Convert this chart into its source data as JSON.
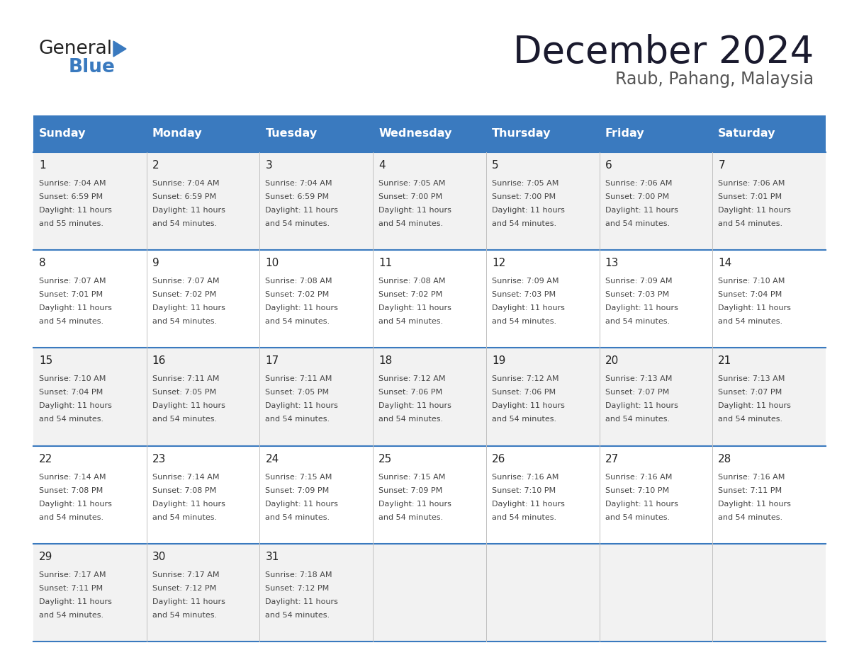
{
  "title": "December 2024",
  "subtitle": "Raub, Pahang, Malaysia",
  "header_bg": "#3a7abf",
  "header_text": "#ffffff",
  "row_bg_odd": "#f2f2f2",
  "row_bg_even": "#ffffff",
  "cell_border": "#3a7abf",
  "day_headers": [
    "Sunday",
    "Monday",
    "Tuesday",
    "Wednesday",
    "Thursday",
    "Friday",
    "Saturday"
  ],
  "days": [
    {
      "date": 1,
      "col": 0,
      "row": 0,
      "sunrise": "7:04 AM",
      "sunset": "6:59 PM",
      "daylight": "11 hours and 55 minutes."
    },
    {
      "date": 2,
      "col": 1,
      "row": 0,
      "sunrise": "7:04 AM",
      "sunset": "6:59 PM",
      "daylight": "11 hours and 54 minutes."
    },
    {
      "date": 3,
      "col": 2,
      "row": 0,
      "sunrise": "7:04 AM",
      "sunset": "6:59 PM",
      "daylight": "11 hours and 54 minutes."
    },
    {
      "date": 4,
      "col": 3,
      "row": 0,
      "sunrise": "7:05 AM",
      "sunset": "7:00 PM",
      "daylight": "11 hours and 54 minutes."
    },
    {
      "date": 5,
      "col": 4,
      "row": 0,
      "sunrise": "7:05 AM",
      "sunset": "7:00 PM",
      "daylight": "11 hours and 54 minutes."
    },
    {
      "date": 6,
      "col": 5,
      "row": 0,
      "sunrise": "7:06 AM",
      "sunset": "7:00 PM",
      "daylight": "11 hours and 54 minutes."
    },
    {
      "date": 7,
      "col": 6,
      "row": 0,
      "sunrise": "7:06 AM",
      "sunset": "7:01 PM",
      "daylight": "11 hours and 54 minutes."
    },
    {
      "date": 8,
      "col": 0,
      "row": 1,
      "sunrise": "7:07 AM",
      "sunset": "7:01 PM",
      "daylight": "11 hours and 54 minutes."
    },
    {
      "date": 9,
      "col": 1,
      "row": 1,
      "sunrise": "7:07 AM",
      "sunset": "7:02 PM",
      "daylight": "11 hours and 54 minutes."
    },
    {
      "date": 10,
      "col": 2,
      "row": 1,
      "sunrise": "7:08 AM",
      "sunset": "7:02 PM",
      "daylight": "11 hours and 54 minutes."
    },
    {
      "date": 11,
      "col": 3,
      "row": 1,
      "sunrise": "7:08 AM",
      "sunset": "7:02 PM",
      "daylight": "11 hours and 54 minutes."
    },
    {
      "date": 12,
      "col": 4,
      "row": 1,
      "sunrise": "7:09 AM",
      "sunset": "7:03 PM",
      "daylight": "11 hours and 54 minutes."
    },
    {
      "date": 13,
      "col": 5,
      "row": 1,
      "sunrise": "7:09 AM",
      "sunset": "7:03 PM",
      "daylight": "11 hours and 54 minutes."
    },
    {
      "date": 14,
      "col": 6,
      "row": 1,
      "sunrise": "7:10 AM",
      "sunset": "7:04 PM",
      "daylight": "11 hours and 54 minutes."
    },
    {
      "date": 15,
      "col": 0,
      "row": 2,
      "sunrise": "7:10 AM",
      "sunset": "7:04 PM",
      "daylight": "11 hours and 54 minutes."
    },
    {
      "date": 16,
      "col": 1,
      "row": 2,
      "sunrise": "7:11 AM",
      "sunset": "7:05 PM",
      "daylight": "11 hours and 54 minutes."
    },
    {
      "date": 17,
      "col": 2,
      "row": 2,
      "sunrise": "7:11 AM",
      "sunset": "7:05 PM",
      "daylight": "11 hours and 54 minutes."
    },
    {
      "date": 18,
      "col": 3,
      "row": 2,
      "sunrise": "7:12 AM",
      "sunset": "7:06 PM",
      "daylight": "11 hours and 54 minutes."
    },
    {
      "date": 19,
      "col": 4,
      "row": 2,
      "sunrise": "7:12 AM",
      "sunset": "7:06 PM",
      "daylight": "11 hours and 54 minutes."
    },
    {
      "date": 20,
      "col": 5,
      "row": 2,
      "sunrise": "7:13 AM",
      "sunset": "7:07 PM",
      "daylight": "11 hours and 54 minutes."
    },
    {
      "date": 21,
      "col": 6,
      "row": 2,
      "sunrise": "7:13 AM",
      "sunset": "7:07 PM",
      "daylight": "11 hours and 54 minutes."
    },
    {
      "date": 22,
      "col": 0,
      "row": 3,
      "sunrise": "7:14 AM",
      "sunset": "7:08 PM",
      "daylight": "11 hours and 54 minutes."
    },
    {
      "date": 23,
      "col": 1,
      "row": 3,
      "sunrise": "7:14 AM",
      "sunset": "7:08 PM",
      "daylight": "11 hours and 54 minutes."
    },
    {
      "date": 24,
      "col": 2,
      "row": 3,
      "sunrise": "7:15 AM",
      "sunset": "7:09 PM",
      "daylight": "11 hours and 54 minutes."
    },
    {
      "date": 25,
      "col": 3,
      "row": 3,
      "sunrise": "7:15 AM",
      "sunset": "7:09 PM",
      "daylight": "11 hours and 54 minutes."
    },
    {
      "date": 26,
      "col": 4,
      "row": 3,
      "sunrise": "7:16 AM",
      "sunset": "7:10 PM",
      "daylight": "11 hours and 54 minutes."
    },
    {
      "date": 27,
      "col": 5,
      "row": 3,
      "sunrise": "7:16 AM",
      "sunset": "7:10 PM",
      "daylight": "11 hours and 54 minutes."
    },
    {
      "date": 28,
      "col": 6,
      "row": 3,
      "sunrise": "7:16 AM",
      "sunset": "7:11 PM",
      "daylight": "11 hours and 54 minutes."
    },
    {
      "date": 29,
      "col": 0,
      "row": 4,
      "sunrise": "7:17 AM",
      "sunset": "7:11 PM",
      "daylight": "11 hours and 54 minutes."
    },
    {
      "date": 30,
      "col": 1,
      "row": 4,
      "sunrise": "7:17 AM",
      "sunset": "7:12 PM",
      "daylight": "11 hours and 54 minutes."
    },
    {
      "date": 31,
      "col": 2,
      "row": 4,
      "sunrise": "7:18 AM",
      "sunset": "7:12 PM",
      "daylight": "11 hours and 54 minutes."
    }
  ],
  "logo_color_general": "#222222",
  "logo_color_blue": "#3a7abf",
  "bg_color": "#ffffff",
  "num_rows": 5,
  "num_cols": 7,
  "fig_width": 11.88,
  "fig_height": 9.18,
  "dpi": 100
}
